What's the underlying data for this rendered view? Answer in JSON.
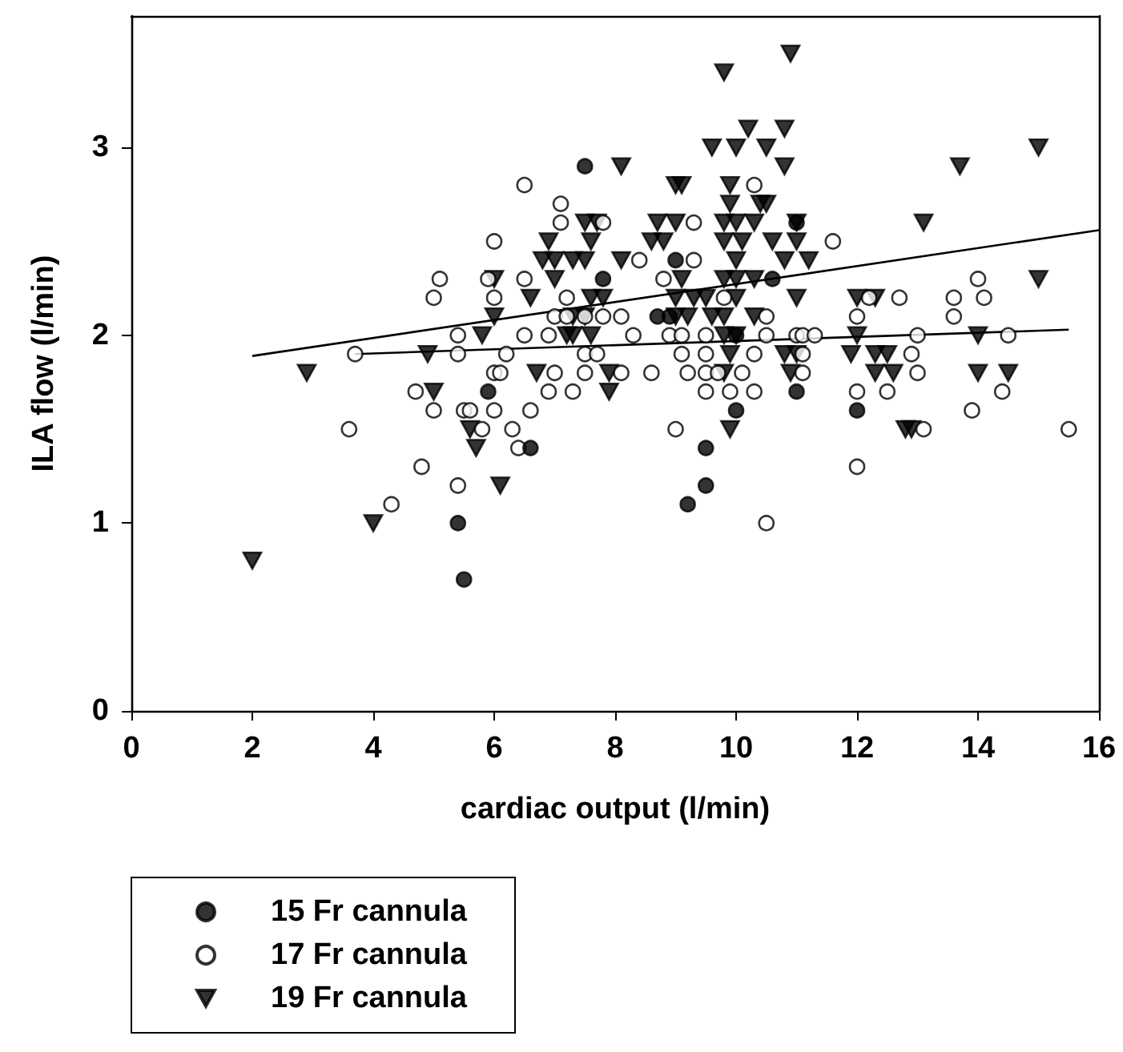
{
  "chart_data": {
    "type": "scatter",
    "xlabel": "cardiac output (l/min)",
    "ylabel": "ILA flow (l/min)",
    "xlim": [
      0,
      16
    ],
    "ylim": [
      0,
      3.7
    ],
    "xticks": [
      0,
      2,
      4,
      6,
      8,
      10,
      12,
      14,
      16
    ],
    "yticks": [
      0,
      1,
      2,
      3
    ],
    "grid": false,
    "legend": "bottom left",
    "series": [
      {
        "name": "15 Fr cannula",
        "color": "#000000",
        "marker": "circle",
        "x": [
          5.4,
          5.5,
          5.9,
          6.6,
          7.5,
          7.8,
          9.0,
          8.7,
          8.9,
          9.5,
          9.5,
          9.2,
          10.0,
          10.6,
          11.0,
          11.0,
          12.0,
          10.0
        ],
        "values": [
          1.0,
          0.7,
          1.7,
          1.4,
          2.9,
          2.3,
          2.4,
          2.1,
          2.1,
          1.4,
          1.2,
          1.1,
          1.6,
          2.3,
          2.6,
          1.7,
          1.6,
          2.0
        ]
      },
      {
        "name": "17 Fr cannula",
        "color": "#ffffff",
        "marker": "circle",
        "x": [
          6.0,
          5.1,
          5.0,
          5.9,
          6.0,
          5.4,
          3.7,
          5.4,
          6.2,
          6.0,
          6.1,
          4.7,
          5.0,
          5.5,
          5.6,
          6.0,
          3.6,
          5.8,
          6.3,
          4.8,
          5.4,
          4.3,
          6.5,
          10.3,
          7.1,
          7.1,
          7.8,
          9.3,
          8.4,
          9.3,
          6.5,
          8.8,
          7.2,
          9.8,
          7.0,
          7.2,
          7.5,
          7.8,
          8.1,
          6.5,
          6.9,
          8.3,
          8.9,
          9.1,
          9.5,
          7.5,
          7.7,
          9.1,
          9.5,
          10.3,
          7.0,
          7.5,
          8.1,
          8.6,
          9.2,
          9.5,
          9.7,
          10.1,
          6.9,
          7.3,
          9.5,
          9.9,
          10.3,
          6.6,
          9.0,
          6.4,
          10.5,
          11.6,
          14.0,
          12.2,
          12.7,
          13.6,
          14.1,
          10.5,
          12.0,
          13.6,
          10.5,
          11.0,
          11.1,
          11.3,
          13.0,
          14.5,
          11.1,
          12.9,
          11.1,
          13.0,
          12.0,
          12.5,
          14.4,
          13.9,
          13.1,
          12.0,
          15.5
        ],
        "values": [
          2.5,
          2.3,
          2.2,
          2.3,
          2.2,
          2.0,
          1.9,
          1.9,
          1.9,
          1.8,
          1.8,
          1.7,
          1.6,
          1.6,
          1.6,
          1.6,
          1.5,
          1.5,
          1.5,
          1.3,
          1.2,
          1.1,
          2.8,
          2.8,
          2.7,
          2.6,
          2.6,
          2.6,
          2.4,
          2.4,
          2.3,
          2.3,
          2.2,
          2.2,
          2.1,
          2.1,
          2.1,
          2.1,
          2.1,
          2.0,
          2.0,
          2.0,
          2.0,
          2.0,
          2.0,
          1.9,
          1.9,
          1.9,
          1.9,
          1.9,
          1.8,
          1.8,
          1.8,
          1.8,
          1.8,
          1.8,
          1.8,
          1.8,
          1.7,
          1.7,
          1.7,
          1.7,
          1.7,
          1.6,
          1.5,
          1.4,
          1.0,
          2.5,
          2.3,
          2.2,
          2.2,
          2.2,
          2.2,
          2.1,
          2.1,
          2.1,
          2.0,
          2.0,
          2.0,
          2.0,
          2.0,
          2.0,
          1.9,
          1.9,
          1.8,
          1.8,
          1.7,
          1.7,
          1.7,
          1.6,
          1.5,
          1.3,
          1.5
        ]
      },
      {
        "name": "19 Fr cannula",
        "color": "#000000",
        "marker": "triangle",
        "x": [
          6.0,
          6.0,
          5.8,
          4.9,
          2.9,
          5.0,
          5.6,
          5.7,
          6.1,
          4.0,
          2.0,
          9.8,
          10.2,
          9.6,
          10.0,
          10.5,
          8.1,
          9.0,
          9.1,
          9.9,
          9.9,
          10.4,
          7.5,
          7.7,
          8.7,
          9.0,
          9.8,
          10.0,
          10.3,
          6.9,
          7.6,
          8.6,
          8.8,
          9.8,
          10.1,
          6.8,
          7.0,
          7.3,
          7.5,
          8.1,
          10.0,
          7.0,
          9.1,
          9.8,
          10.0,
          10.3,
          6.6,
          7.6,
          7.8,
          9.0,
          9.3,
          9.5,
          10.0,
          7.3,
          7.5,
          9.0,
          9.2,
          9.6,
          9.8,
          10.3,
          7.2,
          7.3,
          7.6,
          9.8,
          10.0,
          9.9,
          6.7,
          7.9,
          9.8,
          7.9,
          9.9,
          10.9,
          10.8,
          10.8,
          13.7,
          15.0,
          10.5,
          11.0,
          13.1,
          10.6,
          11.0,
          10.8,
          11.2,
          15.0,
          11.0,
          12.0,
          12.3,
          12.0,
          14.0,
          10.8,
          11.0,
          11.9,
          12.3,
          12.5,
          10.9,
          12.3,
          12.6,
          14.0,
          14.5,
          12.8,
          12.9
        ],
        "values": [
          2.3,
          2.1,
          2.0,
          1.9,
          1.8,
          1.7,
          1.5,
          1.4,
          1.2,
          1.0,
          0.8,
          3.4,
          3.1,
          3.0,
          3.0,
          3.0,
          2.9,
          2.8,
          2.8,
          2.8,
          2.7,
          2.7,
          2.6,
          2.6,
          2.6,
          2.6,
          2.6,
          2.6,
          2.6,
          2.5,
          2.5,
          2.5,
          2.5,
          2.5,
          2.5,
          2.4,
          2.4,
          2.4,
          2.4,
          2.4,
          2.4,
          2.3,
          2.3,
          2.3,
          2.3,
          2.3,
          2.2,
          2.2,
          2.2,
          2.2,
          2.2,
          2.2,
          2.2,
          2.1,
          2.1,
          2.1,
          2.1,
          2.1,
          2.1,
          2.1,
          2.0,
          2.0,
          2.0,
          2.0,
          2.0,
          1.9,
          1.8,
          1.8,
          1.8,
          1.7,
          1.5,
          3.5,
          3.1,
          2.9,
          2.9,
          3.0,
          2.7,
          2.6,
          2.6,
          2.5,
          2.5,
          2.4,
          2.4,
          2.3,
          2.2,
          2.2,
          2.2,
          2.0,
          2.0,
          1.9,
          1.9,
          1.9,
          1.9,
          1.9,
          1.8,
          1.8,
          1.8,
          1.8,
          1.8,
          1.5,
          1.5
        ]
      },
      {
        "type": "line",
        "color": "#000000",
        "marker": "none",
        "x": [
          2.0,
          16.0
        ],
        "values": [
          1.89,
          2.56
        ]
      },
      {
        "type": "line",
        "color": "#000000",
        "marker": "none",
        "x": [
          3.7,
          15.5
        ],
        "values": [
          1.9,
          2.03
        ]
      }
    ]
  }
}
